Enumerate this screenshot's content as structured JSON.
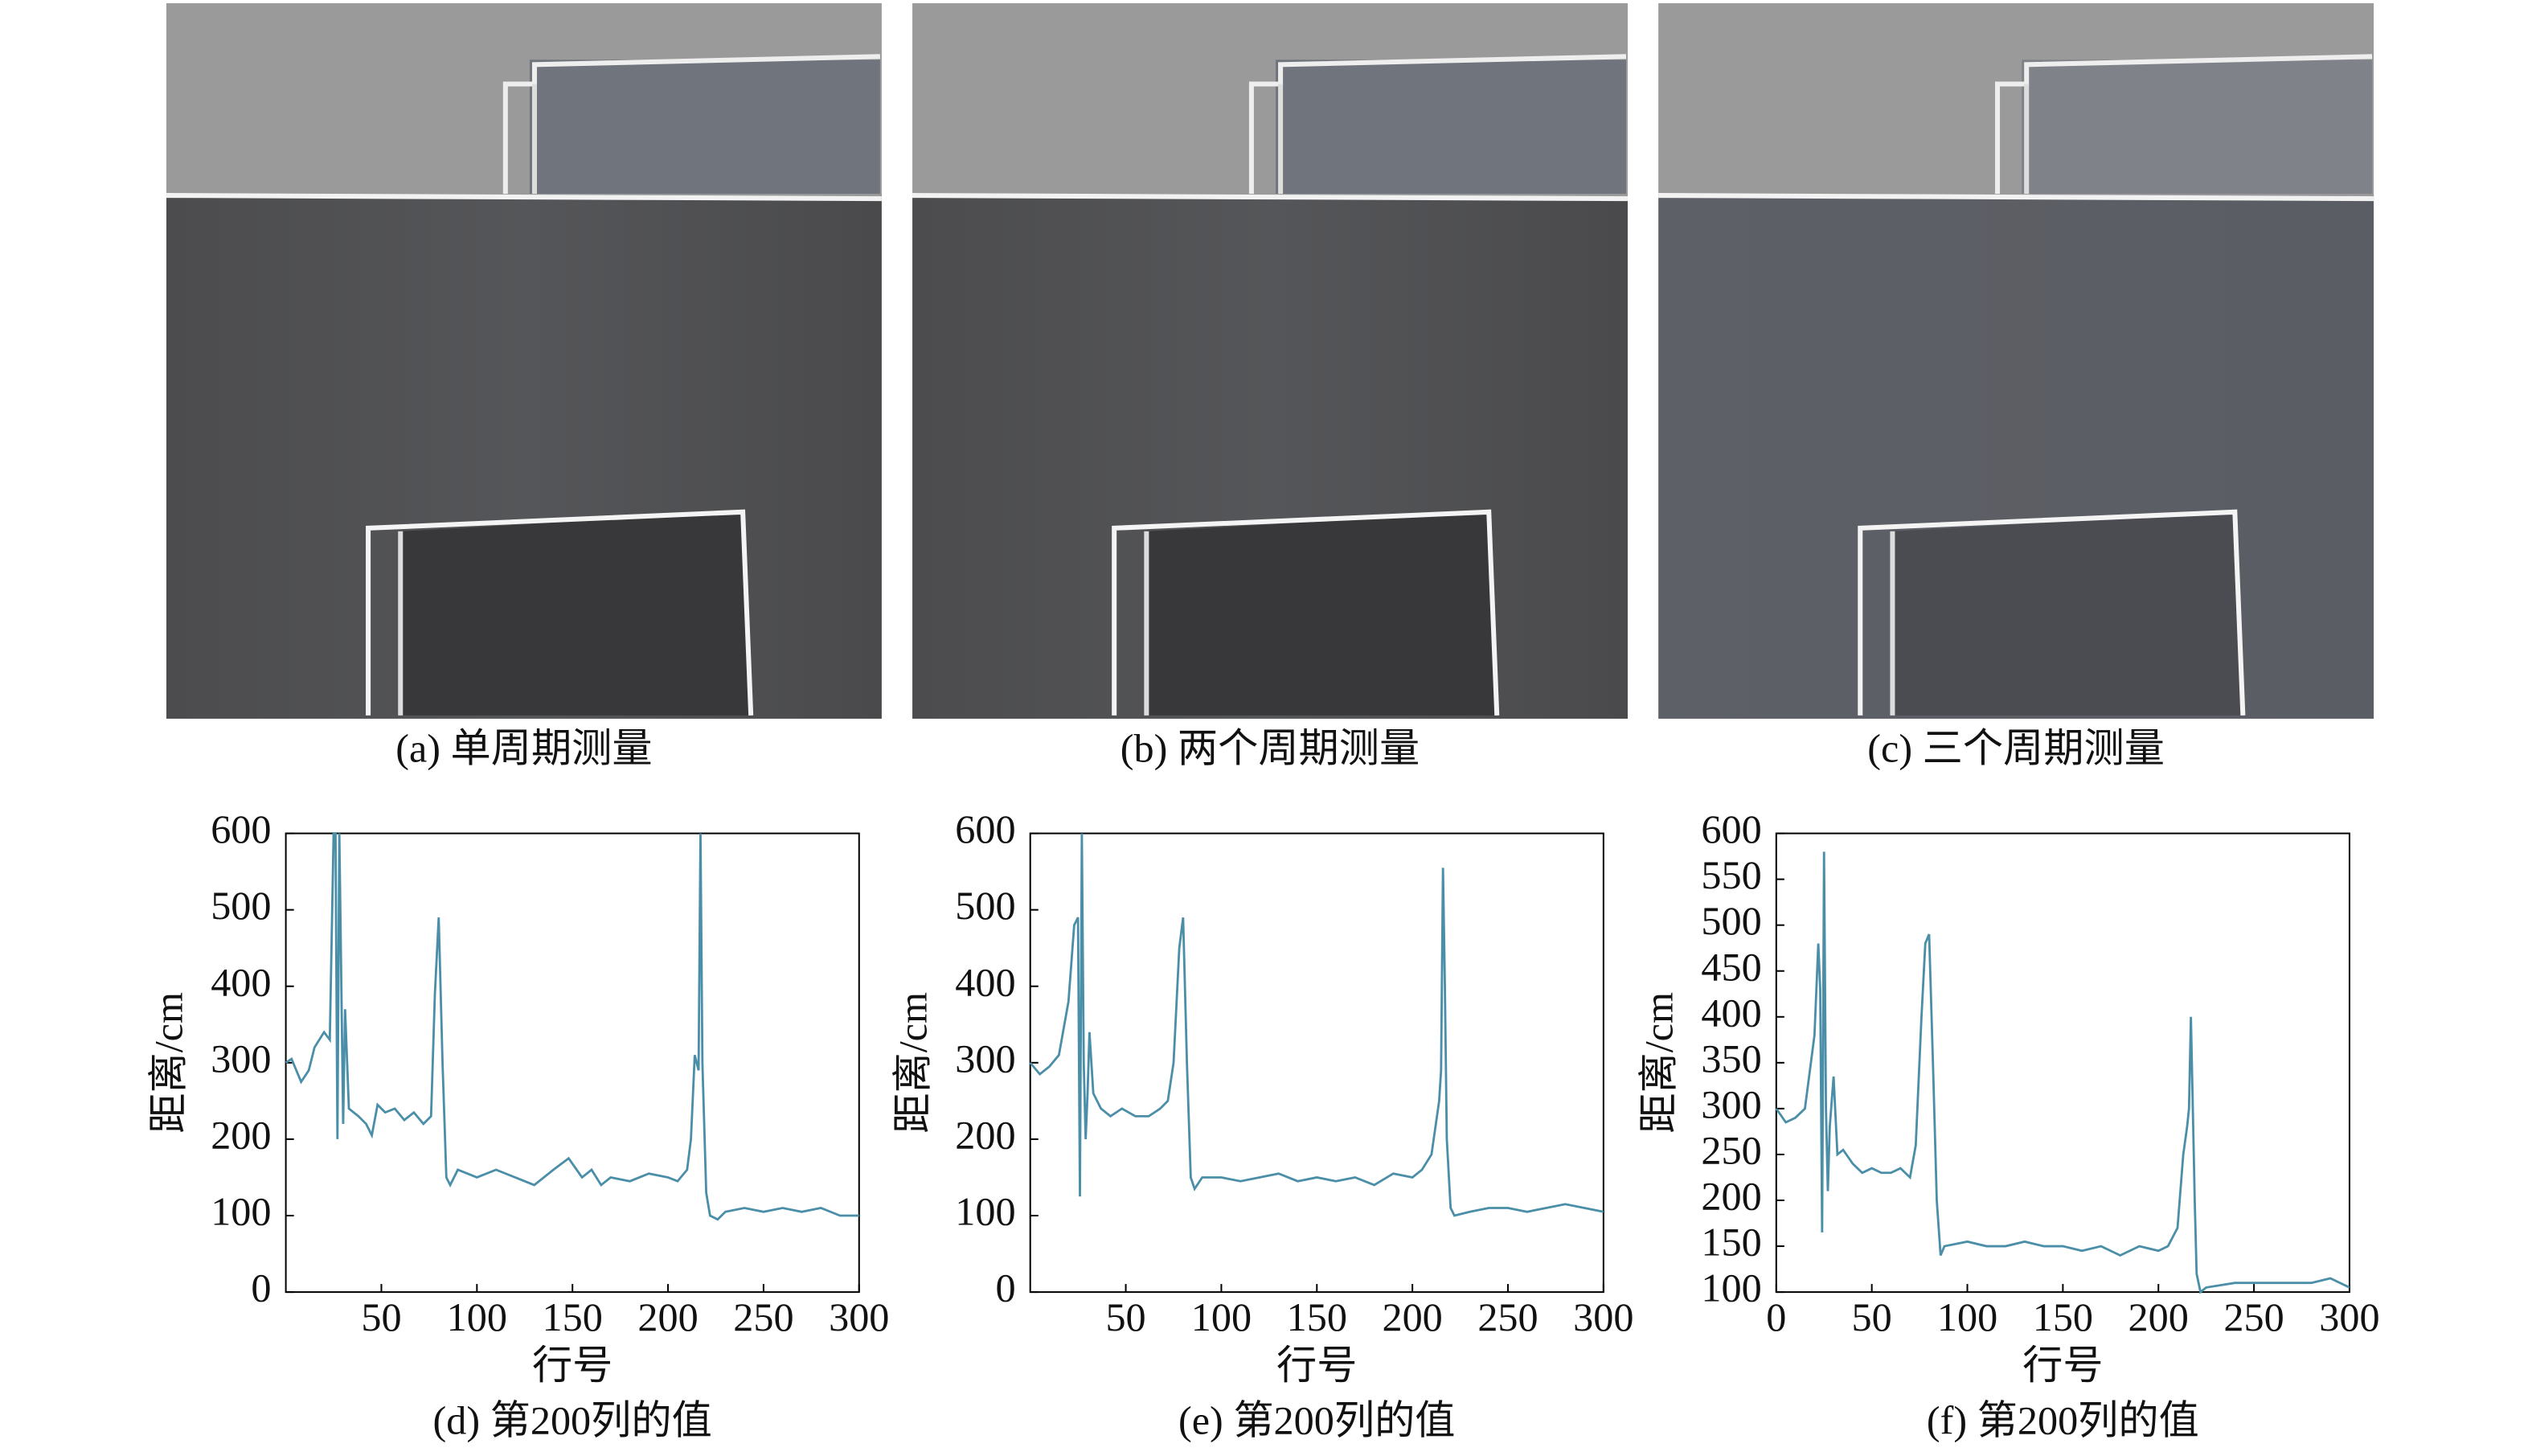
{
  "images": [
    {
      "caption": "(a) 单周期测量"
    },
    {
      "caption": "(b) 两个周期测量"
    },
    {
      "caption": "(c) 三个周期测量"
    }
  ],
  "chart_data": [
    {
      "type": "line",
      "caption": "(d) 第200列的值",
      "xlabel": "行号",
      "ylabel": "距离/cm",
      "color": "#4a8ea8",
      "x": [
        0,
        3,
        8,
        12,
        15,
        20,
        23,
        25,
        26,
        27,
        28,
        30,
        31,
        33,
        38,
        42,
        45,
        48,
        52,
        57,
        62,
        67,
        72,
        76,
        78,
        80,
        82,
        84,
        86,
        90,
        95,
        100,
        110,
        120,
        130,
        140,
        148,
        155,
        160,
        165,
        170,
        180,
        190,
        200,
        205,
        210,
        212,
        214,
        216,
        217,
        218,
        220,
        222,
        226,
        230,
        240,
        250,
        260,
        270,
        280,
        290,
        300
      ],
      "values": [
        300,
        305,
        275,
        290,
        320,
        340,
        330,
        600,
        600,
        200,
        600,
        220,
        370,
        240,
        230,
        220,
        205,
        245,
        235,
        240,
        225,
        235,
        220,
        230,
        390,
        490,
        300,
        150,
        140,
        160,
        155,
        150,
        160,
        150,
        140,
        160,
        175,
        150,
        160,
        140,
        150,
        145,
        155,
        150,
        145,
        160,
        200,
        310,
        290,
        600,
        300,
        130,
        100,
        95,
        105,
        110,
        105,
        110,
        105,
        110,
        100,
        100
      ],
      "xlim": [
        0,
        300
      ],
      "ylim": [
        0,
        600
      ],
      "xticks": [
        50,
        100,
        150,
        200,
        250,
        300
      ],
      "yticks": [
        0,
        100,
        200,
        300,
        400,
        500,
        600
      ]
    },
    {
      "type": "line",
      "caption": "(e) 第200列的值",
      "xlabel": "行号",
      "ylabel": "距离/cm",
      "color": "#4a8ea8",
      "x": [
        0,
        5,
        10,
        15,
        20,
        23,
        25,
        26,
        27,
        28,
        29,
        30,
        31,
        33,
        37,
        42,
        48,
        55,
        62,
        68,
        72,
        75,
        78,
        80,
        82,
        84,
        86,
        90,
        100,
        110,
        120,
        130,
        140,
        150,
        160,
        170,
        180,
        190,
        200,
        205,
        210,
        214,
        215,
        216,
        217,
        218,
        220,
        222,
        230,
        240,
        250,
        260,
        270,
        280,
        290,
        300
      ],
      "values": [
        300,
        285,
        295,
        310,
        380,
        480,
        490,
        125,
        600,
        300,
        200,
        260,
        340,
        260,
        240,
        230,
        240,
        230,
        230,
        240,
        250,
        300,
        450,
        490,
        300,
        150,
        135,
        150,
        150,
        145,
        150,
        155,
        145,
        150,
        145,
        150,
        140,
        155,
        150,
        160,
        180,
        250,
        290,
        555,
        400,
        200,
        110,
        100,
        105,
        110,
        110,
        105,
        110,
        115,
        110,
        105
      ],
      "xlim": [
        0,
        300
      ],
      "ylim": [
        0,
        600
      ],
      "xticks": [
        50,
        100,
        150,
        200,
        250,
        300
      ],
      "yticks": [
        0,
        100,
        200,
        300,
        400,
        500,
        600
      ]
    },
    {
      "type": "line",
      "caption": "(f) 第200列的值",
      "xlabel": "行号",
      "ylabel": "距离/cm",
      "color": "#4a8ea8",
      "x": [
        0,
        5,
        10,
        15,
        20,
        22,
        23,
        24,
        25,
        26,
        27,
        28,
        30,
        32,
        35,
        40,
        45,
        50,
        55,
        60,
        65,
        70,
        73,
        76,
        78,
        80,
        82,
        84,
        86,
        88,
        100,
        110,
        120,
        130,
        140,
        150,
        160,
        170,
        180,
        190,
        200,
        205,
        210,
        213,
        215,
        216,
        217,
        218,
        219,
        220,
        222,
        225,
        240,
        260,
        280,
        290,
        300
      ],
      "values": [
        300,
        285,
        290,
        300,
        380,
        480,
        430,
        165,
        580,
        300,
        210,
        280,
        335,
        250,
        255,
        240,
        230,
        235,
        230,
        230,
        235,
        225,
        260,
        400,
        480,
        490,
        350,
        200,
        140,
        150,
        155,
        150,
        150,
        155,
        150,
        150,
        145,
        150,
        140,
        150,
        145,
        150,
        170,
        250,
        280,
        300,
        400,
        300,
        200,
        120,
        100,
        105,
        110,
        110,
        110,
        115,
        105
      ],
      "xlim": [
        0,
        300
      ],
      "ylim": [
        100,
        600
      ],
      "xticks": [
        0,
        50,
        100,
        150,
        200,
        250,
        300
      ],
      "yticks": [
        100,
        150,
        200,
        250,
        300,
        350,
        400,
        450,
        500,
        550,
        600
      ]
    }
  ]
}
